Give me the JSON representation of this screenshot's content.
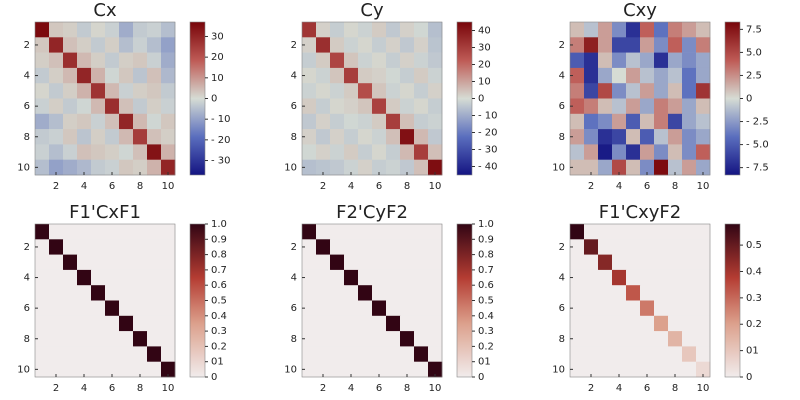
{
  "chart_data": [
    {
      "type": "heatmap",
      "title": "Cx",
      "colormap": "balance",
      "x": [
        1,
        2,
        3,
        4,
        5,
        6,
        7,
        8,
        9,
        10
      ],
      "y": [
        1,
        2,
        3,
        4,
        5,
        6,
        7,
        8,
        9,
        10
      ],
      "xlim": [
        0.5,
        10.5
      ],
      "ylim": [
        0.5,
        10.5
      ],
      "xticks": [
        2,
        4,
        6,
        8,
        10
      ],
      "yticks": [
        2,
        4,
        6,
        8,
        10
      ],
      "clim": [
        -37,
        37
      ],
      "cticks": [
        {
          "value": -30,
          "label": "- 30"
        },
        {
          "value": -20,
          "label": "- 20"
        },
        {
          "value": -10,
          "label": "- 10"
        },
        0,
        10,
        20,
        30
      ],
      "z": [
        [
          36,
          3,
          2,
          -3,
          1,
          -2,
          -8,
          -3,
          -2,
          -5
        ],
        [
          3,
          30,
          4,
          2,
          -3,
          2,
          -5,
          -2,
          -5,
          -10
        ],
        [
          2,
          4,
          28,
          5,
          2,
          -3,
          2,
          3,
          -2,
          -8
        ],
        [
          -3,
          2,
          5,
          30,
          6,
          -1,
          3,
          -4,
          4,
          -6
        ],
        [
          1,
          -3,
          2,
          6,
          27,
          5,
          -2,
          2,
          3,
          -3
        ],
        [
          -2,
          2,
          -3,
          -1,
          5,
          28,
          4,
          -3,
          2,
          -2
        ],
        [
          -8,
          -5,
          2,
          3,
          -2,
          4,
          30,
          5,
          -1,
          3
        ],
        [
          -3,
          -2,
          3,
          -4,
          2,
          -3,
          5,
          25,
          4,
          2
        ],
        [
          -2,
          -5,
          -2,
          4,
          3,
          2,
          -1,
          4,
          34,
          6
        ],
        [
          -5,
          -10,
          -8,
          -6,
          -3,
          -2,
          3,
          2,
          6,
          30
        ]
      ]
    },
    {
      "type": "heatmap",
      "title": "Cy",
      "colormap": "balance",
      "x": [
        1,
        2,
        3,
        4,
        5,
        6,
        7,
        8,
        9,
        10
      ],
      "y": [
        1,
        2,
        3,
        4,
        5,
        6,
        7,
        8,
        9,
        10
      ],
      "xlim": [
        0.5,
        10.5
      ],
      "ylim": [
        0.5,
        10.5
      ],
      "xticks": [
        2,
        4,
        6,
        8,
        10
      ],
      "yticks": [
        2,
        4,
        6,
        8,
        10
      ],
      "clim": [
        -45,
        45
      ],
      "cticks": [
        {
          "value": -40,
          "label": "- 40"
        },
        {
          "value": -30,
          "label": "- 30"
        },
        {
          "value": -20,
          "label": "- 20"
        },
        {
          "value": -10,
          "label": "- 10"
        },
        0,
        10,
        20,
        30,
        40
      ],
      "z": [
        [
          32,
          2,
          -3,
          1,
          -2,
          3,
          -4,
          2,
          -1,
          -6
        ],
        [
          2,
          34,
          3,
          -2,
          1,
          -3,
          2,
          -4,
          2,
          -5
        ],
        [
          -3,
          3,
          28,
          4,
          -2,
          1,
          -3,
          2,
          -2,
          -4
        ],
        [
          1,
          -2,
          4,
          30,
          3,
          2,
          -1,
          -3,
          3,
          -2
        ],
        [
          -2,
          1,
          -2,
          3,
          26,
          4,
          -2,
          1,
          -3,
          2
        ],
        [
          3,
          -3,
          1,
          2,
          4,
          29,
          3,
          -2,
          1,
          -3
        ],
        [
          -4,
          2,
          -3,
          -1,
          -2,
          3,
          30,
          5,
          -3,
          -2
        ],
        [
          2,
          -4,
          2,
          -3,
          1,
          -2,
          5,
          42,
          6,
          -4
        ],
        [
          -1,
          2,
          -2,
          3,
          -3,
          1,
          -3,
          6,
          30,
          5
        ],
        [
          -6,
          -5,
          -4,
          -2,
          2,
          -3,
          -2,
          -4,
          5,
          43
        ]
      ]
    },
    {
      "type": "heatmap",
      "title": "Cxy",
      "colormap": "balance",
      "x": [
        1,
        2,
        3,
        4,
        5,
        6,
        7,
        8,
        9,
        10
      ],
      "y": [
        1,
        2,
        3,
        4,
        5,
        6,
        7,
        8,
        9,
        10
      ],
      "xlim": [
        0.5,
        10.5
      ],
      "ylim": [
        0.5,
        10.5
      ],
      "xticks": [
        2,
        4,
        6,
        8,
        10
      ],
      "yticks": [
        2,
        4,
        6,
        8,
        10
      ],
      "clim": [
        -8.3,
        8.3
      ],
      "cticks": [
        {
          "value": -7.5,
          "label": "- 7.5"
        },
        {
          "value": -5,
          "label": "- 5.0"
        },
        {
          "value": -2.5,
          "label": "- 2.5"
        },
        0,
        2.5,
        {
          "value": 5,
          "label": "5.0"
        },
        7.5
      ],
      "z": [
        [
          1,
          -1,
          2,
          -3,
          -7,
          4,
          -4,
          3,
          2,
          1
        ],
        [
          3,
          7,
          2,
          -6,
          -6,
          2,
          -3,
          4,
          -3,
          3
        ],
        [
          -5,
          -7,
          1,
          -3,
          -1,
          -2,
          -7,
          -2,
          -3,
          -2
        ],
        [
          4,
          -7,
          -2,
          0,
          2,
          -1,
          -2,
          -1,
          -4,
          -2
        ],
        [
          3,
          -6,
          5,
          -3,
          -1,
          2,
          -2,
          1,
          -4,
          6
        ],
        [
          4,
          3,
          1,
          -1,
          2,
          -2,
          3,
          2,
          -2,
          1
        ],
        [
          1,
          -4,
          -3,
          2,
          -5,
          1,
          3,
          -6,
          -2,
          -1
        ],
        [
          2,
          -3,
          -7,
          -6,
          1,
          -5,
          -1,
          2,
          -3,
          -2
        ],
        [
          -1,
          2,
          -8,
          -3,
          -7,
          2,
          -3,
          1,
          -3,
          4
        ],
        [
          1,
          1,
          -2,
          5,
          1,
          -3,
          8,
          -1,
          2,
          -2
        ]
      ]
    },
    {
      "type": "heatmap",
      "title": "F1'CxF1",
      "colormap": "amp",
      "x": [
        1,
        2,
        3,
        4,
        5,
        6,
        7,
        8,
        9,
        10
      ],
      "y": [
        1,
        2,
        3,
        4,
        5,
        6,
        7,
        8,
        9,
        10
      ],
      "xlim": [
        0.5,
        10.5
      ],
      "ylim": [
        0.5,
        10.5
      ],
      "xticks": [
        2,
        4,
        6,
        8,
        10
      ],
      "yticks": [
        2,
        4,
        6,
        8,
        10
      ],
      "clim": [
        0,
        1
      ],
      "cticks": [
        0,
        {
          "value": 0.1,
          "label": "01"
        },
        0.2,
        0.3,
        0.4,
        0.5,
        0.6,
        0.7,
        0.8,
        0.9,
        {
          "value": 1,
          "label": "1.0"
        }
      ],
      "z": [
        [
          1,
          0,
          0,
          0,
          0,
          0,
          0,
          0,
          0,
          0
        ],
        [
          0,
          1,
          0,
          0,
          0,
          0,
          0,
          0,
          0,
          0
        ],
        [
          0,
          0,
          1,
          0,
          0,
          0,
          0,
          0,
          0,
          0
        ],
        [
          0,
          0,
          0,
          1,
          0,
          0,
          0,
          0,
          0,
          0
        ],
        [
          0,
          0,
          0,
          0,
          1,
          0,
          0,
          0,
          0,
          0
        ],
        [
          0,
          0,
          0,
          0,
          0,
          1,
          0,
          0,
          0,
          0
        ],
        [
          0,
          0,
          0,
          0,
          0,
          0,
          1,
          0,
          0,
          0
        ],
        [
          0,
          0,
          0,
          0,
          0,
          0,
          0,
          1,
          0,
          0
        ],
        [
          0,
          0,
          0,
          0,
          0,
          0,
          0,
          0,
          1,
          0
        ],
        [
          0,
          0,
          0,
          0,
          0,
          0,
          0,
          0,
          0,
          1
        ]
      ]
    },
    {
      "type": "heatmap",
      "title": "F2'CyF2",
      "colormap": "amp",
      "x": [
        1,
        2,
        3,
        4,
        5,
        6,
        7,
        8,
        9,
        10
      ],
      "y": [
        1,
        2,
        3,
        4,
        5,
        6,
        7,
        8,
        9,
        10
      ],
      "xlim": [
        0.5,
        10.5
      ],
      "ylim": [
        0.5,
        10.5
      ],
      "xticks": [
        2,
        4,
        6,
        8,
        10
      ],
      "yticks": [
        2,
        4,
        6,
        8,
        10
      ],
      "clim": [
        0,
        1
      ],
      "cticks": [
        0,
        {
          "value": 0.1,
          "label": "01"
        },
        0.2,
        0.3,
        0.4,
        0.5,
        0.6,
        0.7,
        0.8,
        0.9,
        {
          "value": 1,
          "label": "1.0"
        }
      ],
      "z": [
        [
          1,
          0,
          0,
          0,
          0,
          0,
          0,
          0,
          0,
          0
        ],
        [
          0,
          1,
          0,
          0,
          0,
          0,
          0,
          0,
          0,
          0
        ],
        [
          0,
          0,
          1,
          0,
          0,
          0,
          0,
          0,
          0,
          0
        ],
        [
          0,
          0,
          0,
          1,
          0,
          0,
          0,
          0,
          0,
          0
        ],
        [
          0,
          0,
          0,
          0,
          1,
          0,
          0,
          0,
          0,
          0
        ],
        [
          0,
          0,
          0,
          0,
          0,
          1,
          0,
          0,
          0,
          0
        ],
        [
          0,
          0,
          0,
          0,
          0,
          0,
          1,
          0,
          0,
          0
        ],
        [
          0,
          0,
          0,
          0,
          0,
          0,
          0,
          1,
          0,
          0
        ],
        [
          0,
          0,
          0,
          0,
          0,
          0,
          0,
          0,
          1,
          0
        ],
        [
          0,
          0,
          0,
          0,
          0,
          0,
          0,
          0,
          0,
          1
        ]
      ]
    },
    {
      "type": "heatmap",
      "title": "F1'CxyF2",
      "colormap": "amp",
      "x": [
        1,
        2,
        3,
        4,
        5,
        6,
        7,
        8,
        9,
        10
      ],
      "y": [
        1,
        2,
        3,
        4,
        5,
        6,
        7,
        8,
        9,
        10
      ],
      "xlim": [
        0.5,
        10.5
      ],
      "ylim": [
        0.5,
        10.5
      ],
      "xticks": [
        2,
        4,
        6,
        8,
        10
      ],
      "yticks": [
        2,
        4,
        6,
        8,
        10
      ],
      "clim": [
        0,
        0.58
      ],
      "cticks": [
        0,
        {
          "value": 0.1,
          "label": "01"
        },
        0.2,
        0.3,
        0.4,
        0.5
      ],
      "z": [
        [
          0.58,
          0,
          0,
          0,
          0,
          0,
          0,
          0,
          0,
          0
        ],
        [
          0,
          0.5,
          0,
          0,
          0,
          0,
          0,
          0,
          0,
          0
        ],
        [
          0,
          0,
          0.45,
          0,
          0,
          0,
          0,
          0,
          0,
          0
        ],
        [
          0,
          0,
          0,
          0.4,
          0,
          0,
          0,
          0,
          0,
          0
        ],
        [
          0,
          0,
          0,
          0,
          0.33,
          0,
          0,
          0,
          0,
          0
        ],
        [
          0,
          0,
          0,
          0,
          0,
          0.27,
          0,
          0,
          0,
          0
        ],
        [
          0,
          0,
          0,
          0,
          0,
          0,
          0.2,
          0,
          0,
          0
        ],
        [
          0,
          0,
          0,
          0,
          0,
          0,
          0,
          0.15,
          0,
          0
        ],
        [
          0,
          0,
          0,
          0,
          0,
          0,
          0,
          0,
          0.1,
          0
        ],
        [
          0,
          0,
          0,
          0,
          0,
          0,
          0,
          0,
          0,
          0.05
        ]
      ]
    }
  ]
}
